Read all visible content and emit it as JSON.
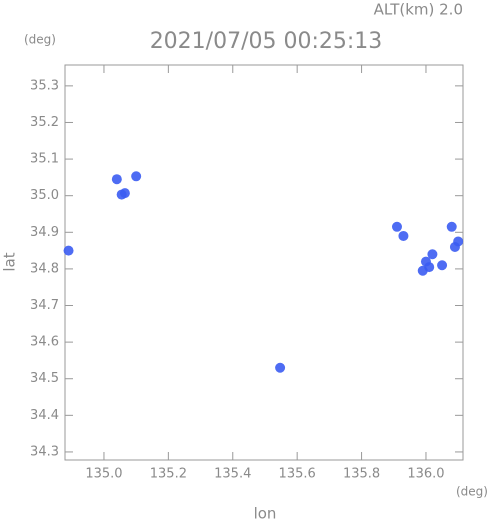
{
  "chart_data": {
    "type": "scatter",
    "title": "2021/07/05 00:25:13",
    "subtitle": "ALT(km) 2.0",
    "x_label": "lon",
    "y_label": "lat",
    "x_unit": "(deg)",
    "y_unit": "(deg)",
    "color": "#3b5cf2",
    "xlim": [
      134.879,
      136.115
    ],
    "ylim": [
      34.278,
      35.357
    ],
    "xticks": [
      {
        "value": 135,
        "label": "135.0"
      },
      135.2,
      135.4,
      135.6,
      135.8,
      {
        "value": 136,
        "label": "136.0"
      }
    ],
    "yticks": [
      34.3,
      34.4,
      34.5,
      34.6,
      34.7,
      34.8,
      34.9,
      {
        "value": 35,
        "label": "35.0"
      },
      35.1,
      35.2,
      35.3
    ],
    "x": [
      134.89,
      135.04,
      135.1,
      135.065,
      135.055,
      135.91,
      135.93,
      136.0,
      136.02,
      135.99,
      136.01,
      136.05,
      136.09,
      136.08,
      136.1,
      135.547
    ],
    "y": [
      34.85,
      35.045,
      35.053,
      35.007,
      35.003,
      34.915,
      34.89,
      34.82,
      34.84,
      34.795,
      34.805,
      34.81,
      34.86,
      34.915,
      34.875,
      34.53
    ]
  }
}
